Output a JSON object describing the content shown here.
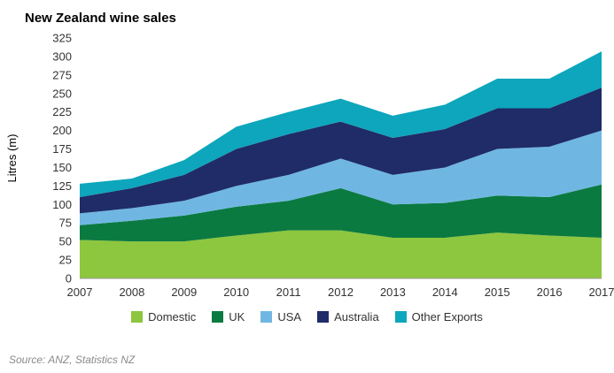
{
  "title": "New Zealand wine sales",
  "source": "Source: ANZ, Statistics NZ",
  "chart_data": {
    "type": "area",
    "stacked": true,
    "title": "New Zealand wine sales",
    "xlabel": "",
    "ylabel": "Litres (m)",
    "ylim": [
      0,
      325
    ],
    "ytick_step": 25,
    "grid": false,
    "legend_position": "bottom",
    "x": [
      2007,
      2008,
      2009,
      2010,
      2011,
      2012,
      2013,
      2014,
      2015,
      2016,
      2017
    ],
    "series": [
      {
        "name": "Domestic",
        "color": "#8dc63f",
        "values": [
          52,
          50,
          50,
          58,
          65,
          65,
          55,
          55,
          62,
          58,
          55
        ]
      },
      {
        "name": "UK",
        "color": "#0b7a40",
        "values": [
          20,
          28,
          35,
          39,
          40,
          57,
          45,
          47,
          50,
          52,
          72
        ]
      },
      {
        "name": "USA",
        "color": "#6fb7e2",
        "values": [
          16,
          17,
          20,
          28,
          35,
          40,
          40,
          48,
          63,
          68,
          73
        ]
      },
      {
        "name": "Australia",
        "color": "#1f2c67",
        "values": [
          22,
          27,
          35,
          50,
          55,
          50,
          50,
          52,
          55,
          52,
          58
        ]
      },
      {
        "name": "Other Exports",
        "color": "#0da6bc",
        "values": [
          18,
          13,
          20,
          30,
          30,
          31,
          30,
          33,
          40,
          40,
          49
        ]
      }
    ]
  }
}
